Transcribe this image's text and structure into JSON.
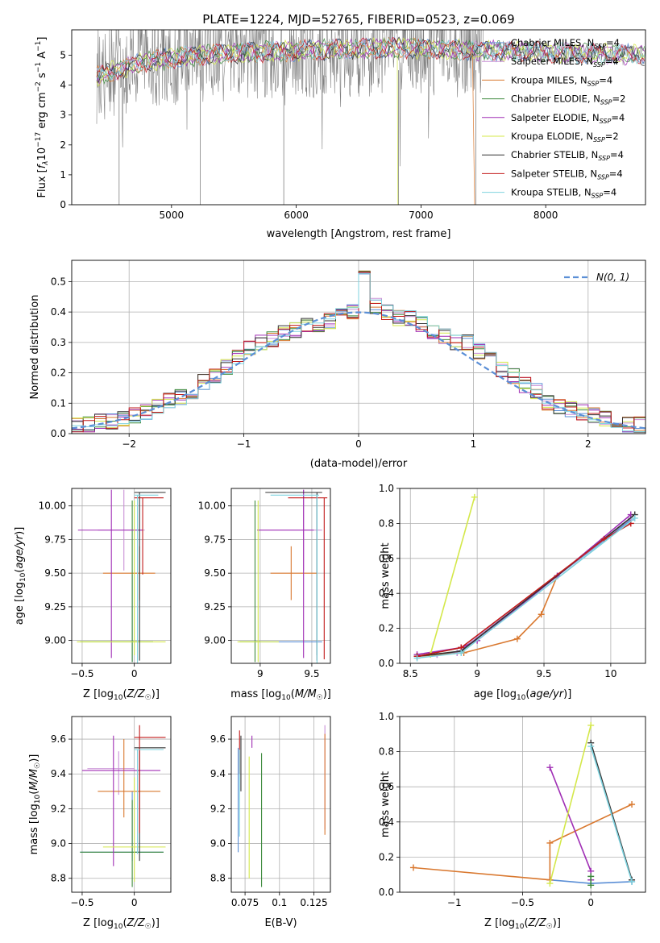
{
  "title": "PLATE=1224, MJD=52765, FIBERID=0523, z=0.069",
  "colors": {
    "Chabrier MILES": "#5b8fd6",
    "Salpeter MILES": "#c98fd6",
    "Kroupa MILES": "#d9782f",
    "Chabrier ELODIE": "#3e8a3e",
    "Salpeter ELODIE": "#a02fb5",
    "Kroupa ELODIE": "#d4e84a",
    "Chabrier STELIB": "#333333",
    "Salpeter STELIB": "#c21b1b",
    "Kroupa STELIB": "#7fd3df",
    "data": "#808080",
    "gaussian": "#5b8fd6"
  },
  "chart_data": [
    {
      "id": "spectrum",
      "type": "line",
      "xlabel": "wavelength [Angstrom, rest frame]",
      "ylabel": "Flux [f_λ10^-17 erg cm^-2 s^-1 A^-1]",
      "xlim": [
        4200,
        8800
      ],
      "ylim": [
        0,
        5.85
      ],
      "xticks": [
        5000,
        6000,
        7000,
        8000
      ],
      "yticks": [
        0,
        1,
        2,
        3,
        4,
        5
      ],
      "legend_position": "upper right",
      "legend": [
        {
          "name": "Chabrier MILES",
          "sub": "N_SSP=4"
        },
        {
          "name": "Salpeter MILES",
          "sub": "N_SSP=4"
        },
        {
          "name": "Kroupa MILES",
          "sub": "N_SSP=4"
        },
        {
          "name": "Chabrier ELODIE",
          "sub": "N_SSP=2"
        },
        {
          "name": "Salpeter ELODIE",
          "sub": "N_SSP=4"
        },
        {
          "name": "Kroupa ELODIE",
          "sub": "N_SSP=2"
        },
        {
          "name": "Chabrier STELIB",
          "sub": "N_SSP=4"
        },
        {
          "name": "Salpeter STELIB",
          "sub": "N_SSP=4"
        },
        {
          "name": "Kroupa STELIB",
          "sub": "N_SSP=4"
        }
      ],
      "model_trend": {
        "x": [
          4400,
          4800,
          5200,
          5600,
          6000,
          6400,
          6800,
          7200,
          7600,
          8000,
          8400,
          8800
        ],
        "y": [
          4.3,
          4.8,
          5.0,
          5.1,
          5.15,
          5.2,
          5.25,
          5.2,
          5.15,
          5.1,
          5.05,
          5.0
        ]
      }
    },
    {
      "id": "residuals",
      "type": "histogram",
      "xlabel": "(data-model)/error",
      "ylabel": "Normed distribution",
      "xlim": [
        -2.5,
        2.5
      ],
      "ylim": [
        0,
        0.57
      ],
      "xticks": [
        -2,
        -1,
        0,
        1,
        2
      ],
      "yticks": [
        0.0,
        0.1,
        0.2,
        0.3,
        0.4,
        0.5
      ],
      "grid": true,
      "legend_position": "upper right",
      "gaussian_label": "N(0, 1)",
      "bin_edges": [
        -2.5,
        -2.4,
        -2.3,
        -2.2,
        -2.1,
        -2.0,
        -1.9,
        -1.8,
        -1.7,
        -1.6,
        -1.5,
        -1.4,
        -1.3,
        -1.2,
        -1.1,
        -1.0,
        -0.9,
        -0.8,
        -0.7,
        -0.6,
        -0.5,
        -0.4,
        -0.3,
        -0.2,
        -0.1,
        0.0,
        0.1,
        0.2,
        0.3,
        0.4,
        0.5,
        0.6,
        0.7,
        0.8,
        0.9,
        1.0,
        1.1,
        1.2,
        1.3,
        1.4,
        1.5,
        1.6,
        1.7,
        1.8,
        1.9,
        2.0,
        2.1,
        2.2,
        2.3,
        2.4,
        2.5
      ],
      "base_counts": [
        0.03,
        0.03,
        0.04,
        0.04,
        0.05,
        0.06,
        0.07,
        0.09,
        0.11,
        0.12,
        0.14,
        0.17,
        0.19,
        0.22,
        0.25,
        0.28,
        0.3,
        0.31,
        0.33,
        0.34,
        0.36,
        0.36,
        0.37,
        0.4,
        0.4,
        0.51,
        0.42,
        0.4,
        0.38,
        0.38,
        0.36,
        0.33,
        0.32,
        0.3,
        0.3,
        0.27,
        0.25,
        0.21,
        0.19,
        0.16,
        0.14,
        0.1,
        0.09,
        0.08,
        0.07,
        0.06,
        0.05,
        0.04,
        0.03,
        0.03
      ]
    },
    {
      "id": "age_vs_Z",
      "type": "errorbar",
      "xlabel": "Z [log10(Z/Z☉)]",
      "ylabel": "age [log10(age/yr)]",
      "xlim": [
        -0.6,
        0.35
      ],
      "ylim": [
        8.83,
        10.13
      ],
      "xticks": [
        -0.5,
        0.0
      ],
      "yticks": [
        9.0,
        9.25,
        9.5,
        9.75,
        10.0
      ],
      "grid": true,
      "points": [
        {
          "s": "Chabrier MILES",
          "x": -0.02,
          "xe": [
            0.02,
            0.02
          ],
          "y": 8.99,
          "ye": [
            0.15,
            0.5
          ]
        },
        {
          "s": "Salpeter MILES",
          "x": -0.1,
          "xe": [
            0.25,
            0.2
          ],
          "y": 9.82,
          "ye": [
            0.3,
            0.3
          ]
        },
        {
          "s": "Kroupa MILES",
          "x": 0.05,
          "xe": [
            0.35,
            0.15
          ],
          "y": 9.5,
          "ye": [
            0.2,
            0.2
          ]
        },
        {
          "s": "Chabrier ELODIE",
          "x": -0.02,
          "xe": [
            0.5,
            0.2
          ],
          "y": 8.99,
          "ye": [
            0.15,
            1.05
          ]
        },
        {
          "s": "Salpeter ELODIE",
          "x": -0.22,
          "xe": [
            0.32,
            0.3
          ],
          "y": 9.82,
          "ye": [
            0.95,
            0.3
          ]
        },
        {
          "s": "Kroupa ELODIE",
          "x": 0.0,
          "xe": [
            0.55,
            0.3
          ],
          "y": 8.99,
          "ye": [
            0.1,
            1.05
          ]
        },
        {
          "s": "Chabrier STELIB",
          "x": 0.05,
          "xe": [
            0.05,
            0.25
          ],
          "y": 10.1,
          "ye": [
            1.25,
            0.0
          ]
        },
        {
          "s": "Salpeter STELIB",
          "x": 0.08,
          "xe": [
            0.08,
            0.2
          ],
          "y": 10.06,
          "ye": [
            0.57,
            0.0
          ]
        },
        {
          "s": "Kroupa STELIB",
          "x": 0.03,
          "xe": [
            0.03,
            0.2
          ],
          "y": 10.08,
          "ye": [
            1.25,
            0.0
          ]
        }
      ]
    },
    {
      "id": "age_vs_mass",
      "type": "errorbar",
      "xlabel": "mass [log10(M/M☉)]",
      "ylabel": "",
      "xlim": [
        8.72,
        9.68
      ],
      "ylim": [
        8.83,
        10.13
      ],
      "xticks": [
        9.0,
        9.5
      ],
      "yticks": [
        9.0,
        9.25,
        9.5,
        9.75,
        10.0
      ],
      "grid": true,
      "points": [
        {
          "s": "Chabrier MILES",
          "x": 9.55,
          "xe": [
            0.6,
            0.05
          ],
          "y": 8.99,
          "ye": [
            0.1,
            1.1
          ]
        },
        {
          "s": "Salpeter MILES",
          "x": 9.42,
          "xe": [
            0.45,
            0.18
          ],
          "y": 9.82,
          "ye": [
            0.3,
            0.3
          ]
        },
        {
          "s": "Kroupa MILES",
          "x": 9.3,
          "xe": [
            0.2,
            0.25
          ],
          "y": 9.5,
          "ye": [
            0.2,
            0.2
          ]
        },
        {
          "s": "Chabrier ELODIE",
          "x": 8.95,
          "xe": [
            0.15,
            0.05
          ],
          "y": 8.99,
          "ye": [
            0.15,
            1.05
          ]
        },
        {
          "s": "Salpeter ELODIE",
          "x": 9.42,
          "xe": [
            0.45,
            0.1
          ],
          "y": 9.82,
          "ye": [
            0.95,
            0.3
          ]
        },
        {
          "s": "Kroupa ELODIE",
          "x": 8.98,
          "xe": [
            0.2,
            0.2
          ],
          "y": 8.99,
          "ye": [
            0.15,
            1.05
          ]
        },
        {
          "s": "Chabrier STELIB",
          "x": 9.55,
          "xe": [
            0.5,
            0.05
          ],
          "y": 10.1,
          "ye": [
            1.25,
            0.0
          ]
        },
        {
          "s": "Salpeter STELIB",
          "x": 9.62,
          "xe": [
            0.35,
            0.03
          ],
          "y": 10.06,
          "ye": [
            1.2,
            0.0
          ]
        },
        {
          "s": "Kroupa STELIB",
          "x": 9.55,
          "xe": [
            0.45,
            0.02
          ],
          "y": 10.08,
          "ye": [
            1.25,
            0.0
          ]
        }
      ]
    },
    {
      "id": "weight_vs_age",
      "type": "line",
      "xlabel": "age [log10(age/yr)]",
      "ylabel": "mass weight",
      "xlim": [
        8.42,
        10.26
      ],
      "ylim": [
        0.0,
        1.0
      ],
      "xticks": [
        8.5,
        9.0,
        9.5,
        10.0
      ],
      "yticks": [
        0.0,
        0.2,
        0.4,
        0.6,
        0.8,
        1.0
      ],
      "grid": true,
      "series": [
        {
          "name": "Chabrier MILES",
          "x": [
            8.7,
            8.85,
            9.6,
            10.15
          ],
          "y": [
            0.05,
            0.06,
            0.5,
            0.82
          ]
        },
        {
          "name": "Salpeter MILES",
          "x": [
            8.7,
            8.85,
            9.6,
            10.15
          ],
          "y": [
            0.05,
            0.06,
            0.5,
            0.83
          ]
        },
        {
          "name": "Kroupa MILES",
          "x": [
            8.55,
            8.9,
            9.3,
            9.48,
            9.6
          ],
          "y": [
            0.04,
            0.06,
            0.14,
            0.28,
            0.5
          ]
        },
        {
          "name": "Chabrier ELODIE",
          "x": [
            8.55,
            8.88
          ],
          "y": [
            0.04,
            0.09
          ]
        },
        {
          "name": "Salpeter ELODIE",
          "x": [
            8.55,
            8.88,
            9.0,
            9.6,
            10.15
          ],
          "y": [
            0.05,
            0.09,
            0.13,
            0.5,
            0.85
          ]
        },
        {
          "name": "Kroupa ELODIE",
          "x": [
            8.65,
            8.98
          ],
          "y": [
            0.05,
            0.95
          ]
        },
        {
          "name": "Chabrier STELIB",
          "x": [
            8.55,
            8.88,
            10.18
          ],
          "y": [
            0.04,
            0.07,
            0.85
          ]
        },
        {
          "name": "Salpeter STELIB",
          "x": [
            8.55,
            8.88,
            9.95,
            10.15
          ],
          "y": [
            0.04,
            0.09,
            0.71,
            0.8
          ]
        },
        {
          "name": "Kroupa STELIB",
          "x": [
            8.55,
            8.88,
            10.18
          ],
          "y": [
            0.03,
            0.06,
            0.83
          ]
        }
      ]
    },
    {
      "id": "mass_vs_Z",
      "type": "errorbar",
      "xlabel": "Z [log10(Z/Z☉)]",
      "ylabel": "mass [log10(M/M☉)]",
      "xlim": [
        -0.6,
        0.35
      ],
      "ylim": [
        8.72,
        9.73
      ],
      "xticks": [
        -0.5,
        0.0
      ],
      "yticks": [
        8.8,
        9.0,
        9.2,
        9.4,
        9.6
      ],
      "grid": true,
      "points": [
        {
          "s": "Chabrier MILES",
          "x": -0.02,
          "xe": [
            0.5,
            0.3
          ],
          "y": 8.95,
          "ye": [
            0.05,
            0.35
          ]
        },
        {
          "s": "Salpeter MILES",
          "x": -0.15,
          "xe": [
            0.3,
            0.15
          ],
          "y": 9.43,
          "ye": [
            0.15,
            0.1
          ]
        },
        {
          "s": "Kroupa MILES",
          "x": -0.1,
          "xe": [
            0.25,
            0.35
          ],
          "y": 9.3,
          "ye": [
            0.15,
            0.3
          ]
        },
        {
          "s": "Chabrier ELODIE",
          "x": -0.02,
          "xe": [
            0.5,
            0.3
          ],
          "y": 8.95,
          "ye": [
            0.2,
            0.3
          ]
        },
        {
          "s": "Salpeter ELODIE",
          "x": -0.2,
          "xe": [
            0.3,
            0.45
          ],
          "y": 9.42,
          "ye": [
            0.55,
            0.2
          ]
        },
        {
          "s": "Kroupa ELODIE",
          "x": 0.0,
          "xe": [
            0.3,
            0.3
          ],
          "y": 8.98,
          "ye": [
            0.2,
            0.4
          ]
        },
        {
          "s": "Chabrier STELIB",
          "x": 0.05,
          "xe": [
            0.05,
            0.25
          ],
          "y": 9.55,
          "ye": [
            0.65,
            0.0
          ]
        },
        {
          "s": "Salpeter STELIB",
          "x": 0.05,
          "xe": [
            0.05,
            0.25
          ],
          "y": 9.61,
          "ye": [
            0.55,
            0.07
          ]
        },
        {
          "s": "Kroupa STELIB",
          "x": 0.03,
          "xe": [
            0.03,
            0.25
          ],
          "y": 9.54,
          "ye": [
            0.6,
            0.0
          ]
        }
      ]
    },
    {
      "id": "mass_vs_ebv",
      "type": "errorbar",
      "xlabel": "E(B-V)",
      "ylabel": "",
      "xlim": [
        0.065,
        0.137
      ],
      "ylim": [
        8.72,
        9.73
      ],
      "xticks": [
        0.075,
        0.1,
        0.125
      ],
      "yticks": [
        8.8,
        9.0,
        9.2,
        9.4,
        9.6
      ],
      "grid": true,
      "points": [
        {
          "s": "Chabrier MILES",
          "x": 0.07,
          "xe": [
            0.0,
            0.0
          ],
          "y": 8.95,
          "ye": [
            0.0,
            0.6
          ]
        },
        {
          "s": "Salpeter MILES",
          "x": 0.133,
          "xe": [
            0.0,
            0.0
          ],
          "y": 9.43,
          "ye": [
            0.35,
            0.25
          ]
        },
        {
          "s": "Kroupa MILES",
          "x": 0.133,
          "xe": [
            0.0,
            0.0
          ],
          "y": 9.3,
          "ye": [
            0.25,
            0.33
          ]
        },
        {
          "s": "Chabrier ELODIE",
          "x": 0.087,
          "xe": [
            0.0,
            0.0
          ],
          "y": 8.95,
          "ye": [
            0.2,
            0.57
          ]
        },
        {
          "s": "Salpeter ELODIE",
          "x": 0.08,
          "xe": [
            0.0,
            0.0
          ],
          "y": 9.55,
          "ye": [
            0.0,
            0.07
          ]
        },
        {
          "s": "Kroupa ELODIE",
          "x": 0.078,
          "xe": [
            0.0,
            0.0
          ],
          "y": 8.95,
          "ye": [
            0.15,
            0.55
          ]
        },
        {
          "s": "Chabrier STELIB",
          "x": 0.072,
          "xe": [
            0.0,
            0.0
          ],
          "y": 9.55,
          "ye": [
            0.25,
            0.07
          ]
        },
        {
          "s": "Salpeter STELIB",
          "x": 0.071,
          "xe": [
            0.0,
            0.0
          ],
          "y": 9.6,
          "ye": [
            0.2,
            0.05
          ]
        },
        {
          "s": "Kroupa STELIB",
          "x": 0.071,
          "xe": [
            0.0,
            0.0
          ],
          "y": 9.54,
          "ye": [
            0.5,
            0.0
          ]
        }
      ]
    },
    {
      "id": "weight_vs_Z",
      "type": "line",
      "xlabel": "Z [log10(Z/Z☉)]",
      "ylabel": "mass weight",
      "xlim": [
        -1.4,
        0.4
      ],
      "ylim": [
        0.0,
        1.0
      ],
      "xticks": [
        -1.0,
        -0.5,
        0.0
      ],
      "yticks": [
        0.0,
        0.2,
        0.4,
        0.6,
        0.8,
        1.0
      ],
      "grid": true,
      "series": [
        {
          "name": "Chabrier MILES",
          "x": [
            -0.3,
            0.0,
            0.3
          ],
          "y": [
            0.07,
            0.05,
            0.06
          ]
        },
        {
          "name": "Kroupa MILES",
          "x": [
            -1.3,
            -0.3,
            -0.3,
            0.3
          ],
          "y": [
            0.14,
            0.07,
            0.28,
            0.5
          ]
        },
        {
          "name": "Salpeter ELODIE",
          "x": [
            -0.3,
            0.0,
            0.0
          ],
          "y": [
            0.71,
            0.12,
            0.07
          ]
        },
        {
          "name": "Kroupa ELODIE",
          "x": [
            -0.3,
            0.0
          ],
          "y": [
            0.05,
            0.95
          ]
        },
        {
          "name": "Chabrier STELIB",
          "x": [
            0.0,
            0.3
          ],
          "y": [
            0.85,
            0.07
          ]
        },
        {
          "name": "Kroupa STELIB",
          "x": [
            0.0,
            0.3
          ],
          "y": [
            0.83,
            0.06
          ]
        },
        {
          "name": "Chabrier ELODIE",
          "x": [
            0.0,
            0.0
          ],
          "y": [
            0.09,
            0.04
          ]
        }
      ]
    }
  ]
}
